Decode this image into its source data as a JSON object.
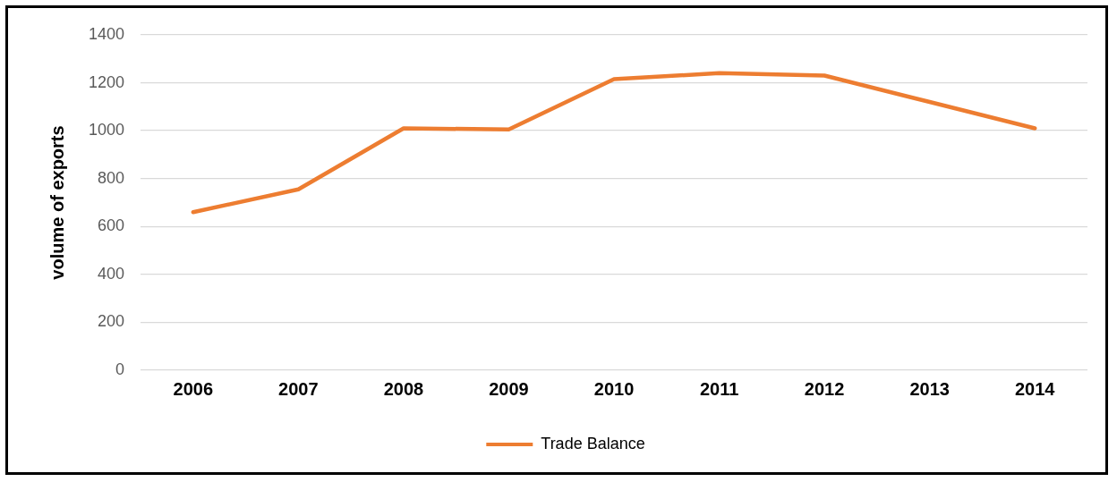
{
  "chart_data": {
    "type": "line",
    "ylabel": "volume of exports",
    "categories": [
      "2006",
      "2007",
      "2008",
      "2009",
      "2010",
      "2011",
      "2012",
      "2013",
      "2014"
    ],
    "series": [
      {
        "name": "Trade Balance",
        "color": "#ed7d31",
        "values": [
          660,
          755,
          1010,
          1005,
          1215,
          1240,
          1230,
          1120,
          1010
        ]
      }
    ],
    "ylim": [
      0,
      1400
    ],
    "yticks": [
      0,
      200,
      400,
      600,
      800,
      1000,
      1200,
      1400
    ],
    "grid": "y",
    "legend": "bottom",
    "marker": "none",
    "line_style": "solid"
  }
}
